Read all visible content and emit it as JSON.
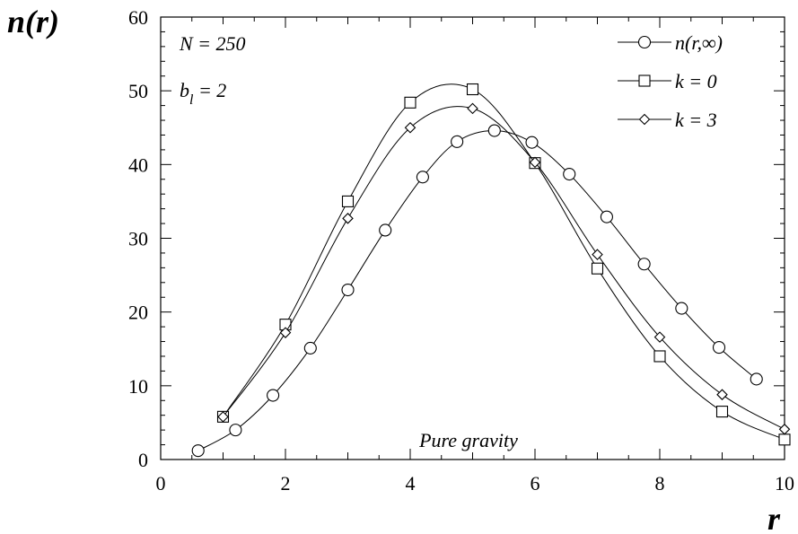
{
  "chart_data": {
    "type": "line",
    "xlabel": "r",
    "ylabel": "n(r)",
    "xlim": [
      0,
      10
    ],
    "ylim": [
      0,
      60
    ],
    "x_ticks": [
      "0",
      "2",
      "4",
      "6",
      "8",
      "10"
    ],
    "y_ticks": [
      "0",
      "10",
      "20",
      "30",
      "40",
      "50",
      "60"
    ],
    "grid": false,
    "legend_position": "top-right",
    "annotations": {
      "n_label": "N = 250",
      "b_label_main": "b",
      "b_label_sub": "l",
      "b_label_rest": " = 2",
      "bottom": "Pure gravity"
    },
    "series": [
      {
        "name": "n(r,∞)",
        "marker": "circle",
        "x": [
          0.6,
          1.2,
          1.8,
          2.4,
          3.0,
          3.6,
          4.2,
          4.75,
          5.35,
          5.95,
          6.55,
          7.15,
          7.75,
          8.35,
          8.95,
          9.55
        ],
        "y": [
          1.2,
          4.0,
          8.7,
          15.1,
          23.0,
          31.1,
          38.3,
          43.1,
          44.6,
          43.0,
          38.7,
          32.9,
          26.5,
          20.5,
          15.2,
          10.9
        ]
      },
      {
        "name": "k = 0",
        "marker": "square",
        "x": [
          1.0,
          2.0,
          3.0,
          4.0,
          5.0,
          6.0,
          7.0,
          8.0,
          9.0,
          10.0
        ],
        "y": [
          5.8,
          18.3,
          35.0,
          48.4,
          50.2,
          40.2,
          25.9,
          14.0,
          6.5,
          2.7
        ]
      },
      {
        "name": "k = 3",
        "marker": "diamond",
        "x": [
          1.0,
          2.0,
          3.0,
          4.0,
          5.0,
          6.0,
          7.0,
          8.0,
          9.0,
          10.0
        ],
        "y": [
          5.8,
          17.2,
          32.7,
          45.0,
          47.6,
          40.3,
          27.8,
          16.6,
          8.8,
          4.1
        ]
      }
    ]
  }
}
